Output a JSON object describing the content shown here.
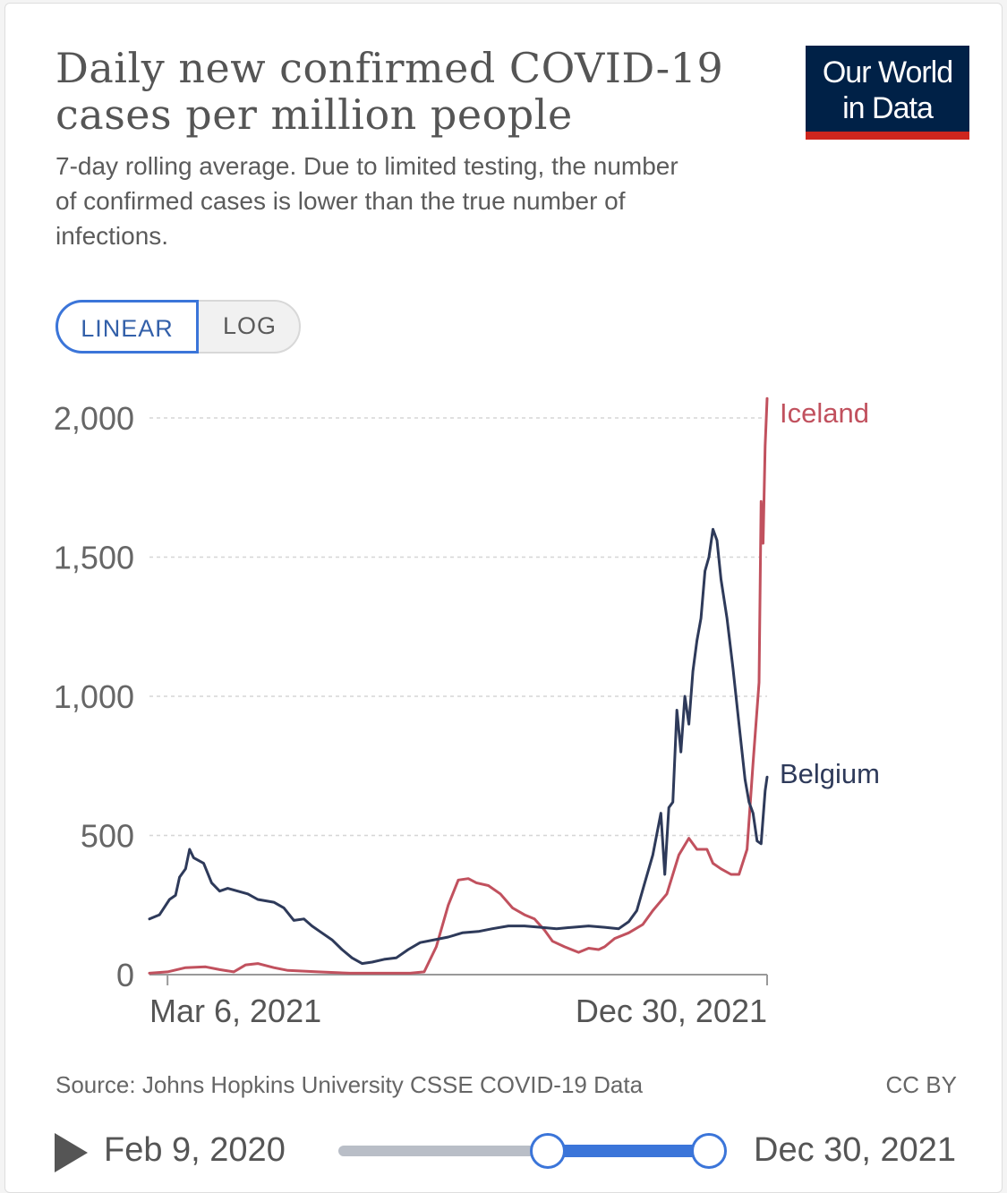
{
  "header": {
    "title": "Daily new confirmed COVID-19 cases per million people",
    "subtitle": "7-day rolling average. Due to limited testing, the number of confirmed cases is lower than the true number of infections."
  },
  "logo": {
    "line1": "Our World",
    "line2": "in Data"
  },
  "scale_toggle": {
    "linear_label": "LINEAR",
    "log_label": "LOG",
    "selected": "LINEAR"
  },
  "footer": {
    "source": "Source: Johns Hopkins University CSSE COVID-19 Data",
    "license": "CC BY"
  },
  "timeline": {
    "start_label": "Feb 9, 2020",
    "end_label": "Dec 30, 2021",
    "start_handle": 0.565,
    "end_handle": 1.0
  },
  "colors": {
    "accent": "#3b75d9",
    "logo_bg": "#002147",
    "logo_bar": "#ce261e"
  },
  "chart_data": {
    "type": "line",
    "ylim": [
      0,
      2000
    ],
    "yticks": [
      0,
      500,
      1000,
      1500,
      2000
    ],
    "ytick_labels": [
      "0",
      "500",
      "1,000",
      "1,500",
      "2,000"
    ],
    "xlim": [
      "2021-02-25",
      "2021-12-30"
    ],
    "xticks": [
      "2021-03-06",
      "2021-12-30"
    ],
    "xtick_labels": [
      "Mar 6, 2021",
      "Dec 30, 2021"
    ],
    "grid": true,
    "legend": "inline labels at line ends",
    "series": [
      {
        "name": "Iceland",
        "color": "#c1515e",
        "points": [
          [
            "2021-02-25",
            5
          ],
          [
            "2021-03-06",
            10
          ],
          [
            "2021-03-15",
            25
          ],
          [
            "2021-03-25",
            28
          ],
          [
            "2021-04-01",
            18
          ],
          [
            "2021-04-08",
            10
          ],
          [
            "2021-04-14",
            35
          ],
          [
            "2021-04-20",
            40
          ],
          [
            "2021-04-28",
            25
          ],
          [
            "2021-05-05",
            15
          ],
          [
            "2021-05-20",
            10
          ],
          [
            "2021-06-05",
            5
          ],
          [
            "2021-06-20",
            5
          ],
          [
            "2021-07-05",
            5
          ],
          [
            "2021-07-12",
            10
          ],
          [
            "2021-07-18",
            100
          ],
          [
            "2021-07-24",
            250
          ],
          [
            "2021-07-29",
            340
          ],
          [
            "2021-08-03",
            345
          ],
          [
            "2021-08-07",
            330
          ],
          [
            "2021-08-13",
            320
          ],
          [
            "2021-08-19",
            290
          ],
          [
            "2021-08-25",
            240
          ],
          [
            "2021-08-31",
            215
          ],
          [
            "2021-09-05",
            200
          ],
          [
            "2021-09-10",
            160
          ],
          [
            "2021-09-14",
            120
          ],
          [
            "2021-09-20",
            100
          ],
          [
            "2021-09-27",
            80
          ],
          [
            "2021-10-02",
            95
          ],
          [
            "2021-10-07",
            90
          ],
          [
            "2021-10-10",
            100
          ],
          [
            "2021-10-15",
            130
          ],
          [
            "2021-10-22",
            150
          ],
          [
            "2021-10-29",
            180
          ],
          [
            "2021-11-03",
            230
          ],
          [
            "2021-11-10",
            290
          ],
          [
            "2021-11-16",
            430
          ],
          [
            "2021-11-21",
            490
          ],
          [
            "2021-11-25",
            450
          ],
          [
            "2021-11-30",
            450
          ],
          [
            "2021-12-03",
            400
          ],
          [
            "2021-12-07",
            380
          ],
          [
            "2021-12-12",
            360
          ],
          [
            "2021-12-16",
            360
          ],
          [
            "2021-12-20",
            450
          ],
          [
            "2021-12-23",
            760
          ],
          [
            "2021-12-26",
            1050
          ],
          [
            "2021-12-27",
            1700
          ],
          [
            "2021-12-28",
            1550
          ],
          [
            "2021-12-29",
            1900
          ],
          [
            "2021-12-30",
            2070
          ]
        ]
      },
      {
        "name": "Belgium",
        "color": "#2e3a5a",
        "points": [
          [
            "2021-02-25",
            200
          ],
          [
            "2021-03-02",
            215
          ],
          [
            "2021-03-07",
            270
          ],
          [
            "2021-03-10",
            285
          ],
          [
            "2021-03-12",
            350
          ],
          [
            "2021-03-15",
            380
          ],
          [
            "2021-03-17",
            450
          ],
          [
            "2021-03-19",
            420
          ],
          [
            "2021-03-24",
            400
          ],
          [
            "2021-03-28",
            330
          ],
          [
            "2021-04-01",
            300
          ],
          [
            "2021-04-05",
            310
          ],
          [
            "2021-04-10",
            300
          ],
          [
            "2021-04-15",
            290
          ],
          [
            "2021-04-20",
            270
          ],
          [
            "2021-04-28",
            260
          ],
          [
            "2021-05-03",
            240
          ],
          [
            "2021-05-08",
            195
          ],
          [
            "2021-05-13",
            200
          ],
          [
            "2021-05-17",
            175
          ],
          [
            "2021-05-21",
            155
          ],
          [
            "2021-05-27",
            125
          ],
          [
            "2021-06-01",
            90
          ],
          [
            "2021-06-06",
            60
          ],
          [
            "2021-06-11",
            40
          ],
          [
            "2021-06-16",
            45
          ],
          [
            "2021-06-22",
            55
          ],
          [
            "2021-06-28",
            60
          ],
          [
            "2021-07-04",
            90
          ],
          [
            "2021-07-10",
            115
          ],
          [
            "2021-07-17",
            125
          ],
          [
            "2021-07-24",
            135
          ],
          [
            "2021-07-31",
            150
          ],
          [
            "2021-08-08",
            155
          ],
          [
            "2021-08-15",
            165
          ],
          [
            "2021-08-23",
            175
          ],
          [
            "2021-08-31",
            175
          ],
          [
            "2021-09-08",
            170
          ],
          [
            "2021-09-16",
            165
          ],
          [
            "2021-09-24",
            170
          ],
          [
            "2021-10-02",
            175
          ],
          [
            "2021-10-10",
            170
          ],
          [
            "2021-10-17",
            165
          ],
          [
            "2021-10-22",
            190
          ],
          [
            "2021-10-26",
            230
          ],
          [
            "2021-10-30",
            330
          ],
          [
            "2021-11-03",
            430
          ],
          [
            "2021-11-07",
            580
          ],
          [
            "2021-11-09",
            360
          ],
          [
            "2021-11-11",
            600
          ],
          [
            "2021-11-13",
            620
          ],
          [
            "2021-11-15",
            950
          ],
          [
            "2021-11-17",
            800
          ],
          [
            "2021-11-19",
            1000
          ],
          [
            "2021-11-21",
            900
          ],
          [
            "2021-11-23",
            1090
          ],
          [
            "2021-11-25",
            1200
          ],
          [
            "2021-11-27",
            1280
          ],
          [
            "2021-11-29",
            1450
          ],
          [
            "2021-12-01",
            1500
          ],
          [
            "2021-12-03",
            1600
          ],
          [
            "2021-12-05",
            1560
          ],
          [
            "2021-12-07",
            1420
          ],
          [
            "2021-12-10",
            1280
          ],
          [
            "2021-12-13",
            1100
          ],
          [
            "2021-12-16",
            900
          ],
          [
            "2021-12-19",
            700
          ],
          [
            "2021-12-21",
            620
          ],
          [
            "2021-12-23",
            580
          ],
          [
            "2021-12-25",
            480
          ],
          [
            "2021-12-27",
            470
          ],
          [
            "2021-12-29",
            660
          ],
          [
            "2021-12-30",
            710
          ]
        ]
      }
    ]
  }
}
